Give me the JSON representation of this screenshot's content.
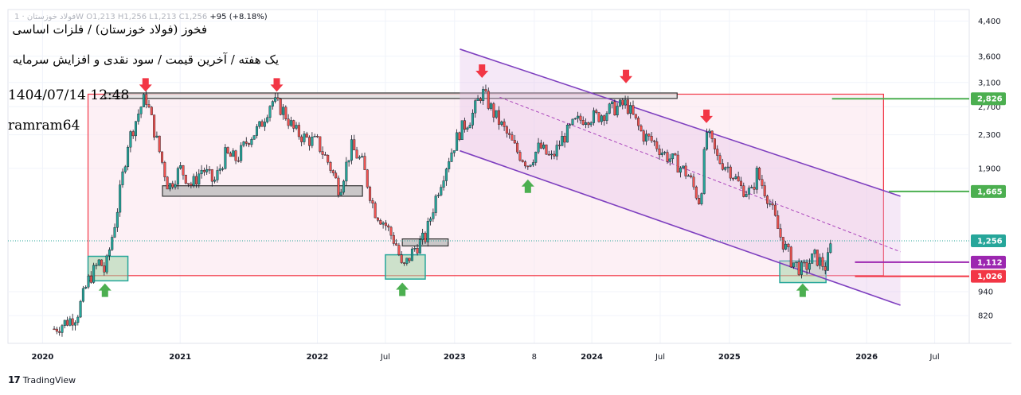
{
  "header": {
    "ohlc_prefix": "فولاد خوزستان · 1W",
    "ohlc_text": "O1,213  H1,256  L1,213  C1,256",
    "change_text": "+95 (+8.18%)"
  },
  "overlay": {
    "title": "فخوز (فولاد خوزستان) / فلزات اساسی",
    "subtitle": "یک هفته / آخرین قیمت / سود نقدی و افزایش سرمایه",
    "datetime": "1404/07/14 12:48",
    "author": "ramram64"
  },
  "footer": {
    "brand": "TradingView",
    "logo_glyph": "17"
  },
  "colors": {
    "up": "#26a69a",
    "down": "#ef5350",
    "channel": "#7e3fbf",
    "box_border": "#f23645",
    "box_fill": "#fce4ec",
    "green_zone": "#4caf50",
    "resistance": "#4caf50",
    "support_red": "#f23645",
    "gray_zone": "#9e9e9e",
    "last_price": "#26a69a"
  },
  "chart_data": {
    "type": "candlestick",
    "title": "",
    "y_scale": "log",
    "y_ticks": [
      "820",
      "940",
      "1,900",
      "2,300",
      "2,700",
      "3,100",
      "3,600",
      "4,400"
    ],
    "x_ticks": [
      "2020",
      "2021",
      "2022",
      "Jul",
      "2023",
      "8",
      "2024",
      "Jul",
      "2025",
      "2026",
      "Jul"
    ],
    "x_range": [
      "2019-10-01",
      "2026-10-01"
    ],
    "y_range": [
      700,
      4700
    ],
    "last_price": 1256,
    "price_tags": [
      {
        "label": "2,826",
        "value": 2826,
        "color": "#4caf50"
      },
      {
        "label": "1,665",
        "value": 1665,
        "color": "#4caf50"
      },
      {
        "label": "1,256",
        "value": 1256,
        "color": "#26a69a"
      },
      {
        "label": "1,112",
        "value": 1112,
        "color": "#9c27b0"
      },
      {
        "label": "1,026",
        "value": 1026,
        "color": "#f23645"
      }
    ],
    "horizontal_levels": [
      {
        "value": 2826,
        "from": "2025-10-01",
        "to": "2026-10-01",
        "color": "#4caf50"
      },
      {
        "value": 1665,
        "from": "2026-03-01",
        "to": "2026-10-01",
        "color": "#4caf50"
      },
      {
        "value": 1112,
        "from": "2025-12-01",
        "to": "2026-10-01",
        "color": "#9c27b0"
      },
      {
        "value": 1026,
        "from": "2025-12-01",
        "to": "2026-10-01",
        "color": "#f23645"
      }
    ],
    "range_box": {
      "t0": "2020-05-01",
      "t1": "2026-02-15",
      "top": 2900,
      "bottom": 1030
    },
    "channel": {
      "upper": [
        {
          "t": "2023-01-15",
          "v": 3750
        },
        {
          "t": "2026-04-01",
          "v": 1620
        }
      ],
      "lower": [
        {
          "t": "2023-01-15",
          "v": 2100
        },
        {
          "t": "2026-04-01",
          "v": 870
        }
      ],
      "mid": [
        {
          "t": "2023-05-01",
          "v": 2850
        },
        {
          "t": "2026-04-01",
          "v": 1180
        }
      ]
    },
    "resistance_zone": {
      "t0": "2020-06-15",
      "t1": "2024-08-15",
      "top": 2920,
      "bottom": 2830
    },
    "gray_zones": [
      {
        "t0": "2020-11-15",
        "t1": "2022-05-01",
        "top": 1720,
        "bottom": 1620
      },
      {
        "t0": "2022-08-15",
        "t1": "2022-12-15",
        "top": 1270,
        "bottom": 1220
      }
    ],
    "green_zones": [
      {
        "t0": "2020-05-01",
        "t1": "2020-08-15",
        "top": 1150,
        "bottom": 1000
      },
      {
        "t0": "2022-07-01",
        "t1": "2022-10-15",
        "top": 1160,
        "bottom": 1010
      },
      {
        "t0": "2025-05-15",
        "t1": "2025-09-15",
        "top": 1120,
        "bottom": 990
      }
    ],
    "down_arrows": [
      {
        "t": "2020-10-01",
        "v": 3050
      },
      {
        "t": "2021-09-15",
        "v": 3050
      },
      {
        "t": "2023-03-15",
        "v": 3300
      },
      {
        "t": "2024-04-01",
        "v": 3200
      },
      {
        "t": "2024-11-01",
        "v": 2550
      }
    ],
    "up_arrows": [
      {
        "t": "2020-06-15",
        "v": 950
      },
      {
        "t": "2022-08-15",
        "v": 955
      },
      {
        "t": "2023-07-15",
        "v": 1720
      },
      {
        "t": "2025-07-15",
        "v": 950
      }
    ],
    "price_path": [
      {
        "t": "2020-02-01",
        "v": 760
      },
      {
        "t": "2020-04-01",
        "v": 820
      },
      {
        "t": "2020-05-01",
        "v": 1000
      },
      {
        "t": "2020-06-01",
        "v": 1120
      },
      {
        "t": "2020-06-15",
        "v": 1050
      },
      {
        "t": "2020-07-15",
        "v": 1450
      },
      {
        "t": "2020-08-15",
        "v": 2200
      },
      {
        "t": "2020-09-15",
        "v": 2650
      },
      {
        "t": "2020-10-01",
        "v": 2870
      },
      {
        "t": "2020-11-01",
        "v": 2200
      },
      {
        "t": "2020-12-01",
        "v": 1700
      },
      {
        "t": "2021-01-01",
        "v": 1900
      },
      {
        "t": "2021-02-01",
        "v": 1720
      },
      {
        "t": "2021-03-01",
        "v": 1900
      },
      {
        "t": "2021-04-01",
        "v": 1750
      },
      {
        "t": "2021-05-01",
        "v": 2050
      },
      {
        "t": "2021-06-01",
        "v": 2000
      },
      {
        "t": "2021-07-01",
        "v": 2250
      },
      {
        "t": "2021-08-01",
        "v": 2400
      },
      {
        "t": "2021-09-01",
        "v": 2800
      },
      {
        "t": "2021-10-01",
        "v": 2650
      },
      {
        "t": "2021-11-01",
        "v": 2350
      },
      {
        "t": "2021-12-01",
        "v": 2250
      },
      {
        "t": "2022-01-01",
        "v": 2200
      },
      {
        "t": "2022-02-01",
        "v": 1950
      },
      {
        "t": "2022-03-01",
        "v": 1680
      },
      {
        "t": "2022-04-01",
        "v": 2150
      },
      {
        "t": "2022-05-01",
        "v": 1950
      },
      {
        "t": "2022-06-01",
        "v": 1500
      },
      {
        "t": "2022-07-01",
        "v": 1380
      },
      {
        "t": "2022-08-01",
        "v": 1220
      },
      {
        "t": "2022-08-15",
        "v": 1060
      },
      {
        "t": "2022-09-15",
        "v": 1200
      },
      {
        "t": "2022-10-15",
        "v": 1280
      },
      {
        "t": "2022-11-15",
        "v": 1650
      },
      {
        "t": "2022-12-15",
        "v": 2000
      },
      {
        "t": "2023-01-15",
        "v": 2350
      },
      {
        "t": "2023-02-15",
        "v": 2550
      },
      {
        "t": "2023-03-15",
        "v": 2950
      },
      {
        "t": "2023-04-15",
        "v": 2600
      },
      {
        "t": "2023-05-15",
        "v": 2350
      },
      {
        "t": "2023-06-15",
        "v": 2100
      },
      {
        "t": "2023-07-15",
        "v": 1950
      },
      {
        "t": "2023-08-15",
        "v": 2150
      },
      {
        "t": "2023-09-15",
        "v": 2000
      },
      {
        "t": "2023-10-15",
        "v": 2250
      },
      {
        "t": "2023-11-15",
        "v": 2450
      },
      {
        "t": "2023-12-15",
        "v": 2550
      },
      {
        "t": "2024-01-15",
        "v": 2550
      },
      {
        "t": "2024-02-15",
        "v": 2650
      },
      {
        "t": "2024-03-15",
        "v": 2700
      },
      {
        "t": "2024-04-01",
        "v": 2750
      },
      {
        "t": "2024-05-15",
        "v": 2300
      },
      {
        "t": "2024-06-15",
        "v": 2200
      },
      {
        "t": "2024-07-15",
        "v": 2050
      },
      {
        "t": "2024-08-15",
        "v": 1950
      },
      {
        "t": "2024-09-15",
        "v": 1820
      },
      {
        "t": "2024-10-15",
        "v": 1560
      },
      {
        "t": "2024-11-01",
        "v": 2350
      },
      {
        "t": "2024-12-01",
        "v": 2000
      },
      {
        "t": "2025-01-01",
        "v": 1900
      },
      {
        "t": "2025-02-01",
        "v": 1700
      },
      {
        "t": "2025-03-01",
        "v": 1650
      },
      {
        "t": "2025-03-15",
        "v": 1850
      },
      {
        "t": "2025-04-15",
        "v": 1600
      },
      {
        "t": "2025-05-15",
        "v": 1300
      },
      {
        "t": "2025-06-15",
        "v": 1120
      },
      {
        "t": "2025-07-15",
        "v": 1060
      },
      {
        "t": "2025-08-15",
        "v": 1150
      },
      {
        "t": "2025-09-15",
        "v": 1080
      },
      {
        "t": "2025-10-01",
        "v": 1256
      }
    ]
  }
}
